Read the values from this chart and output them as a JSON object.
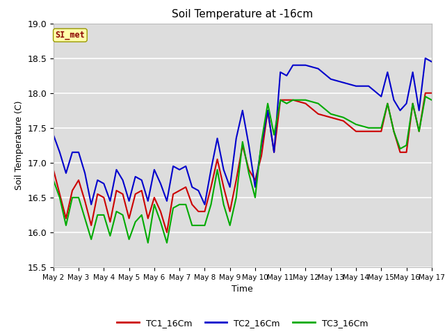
{
  "title": "Soil Temperature at -16cm",
  "xlabel": "Time",
  "ylabel": "Soil Temperature (C)",
  "ylim": [
    15.5,
    19.0
  ],
  "fig_bg_color": "#ffffff",
  "plot_bg_color": "#dddddd",
  "watermark_text": "SI_met",
  "legend_labels": [
    "TC1_16Cm",
    "TC2_16Cm",
    "TC3_16Cm"
  ],
  "colors": [
    "#cc0000",
    "#0000cc",
    "#00aa00"
  ],
  "x_tick_labels": [
    "May 2",
    "May 3",
    "May 4",
    "May 5",
    "May 6",
    "May 7",
    "May 8",
    "May 9",
    "May 10",
    "May 11",
    "May 12",
    "May 13",
    "May 14",
    "May 15",
    "May 16",
    "May 17"
  ],
  "TC1_x": [
    0,
    0.25,
    0.5,
    0.75,
    1.0,
    1.25,
    1.5,
    1.75,
    2.0,
    2.25,
    2.5,
    2.75,
    3.0,
    3.25,
    3.5,
    3.75,
    4.0,
    4.25,
    4.5,
    4.75,
    5.0,
    5.25,
    5.5,
    5.75,
    6.0,
    6.25,
    6.5,
    6.75,
    7.0,
    7.25,
    7.5,
    7.75,
    8.0,
    8.25,
    8.5,
    8.75,
    9.0,
    9.5,
    10.0,
    10.5,
    11.0,
    11.5,
    12.0,
    12.5,
    13.0,
    13.25,
    13.5,
    13.75,
    14.0,
    14.25,
    14.5,
    14.75,
    15.0
  ],
  "TC1_y": [
    16.9,
    16.55,
    16.2,
    16.6,
    16.75,
    16.45,
    16.1,
    16.55,
    16.5,
    16.15,
    16.6,
    16.55,
    16.2,
    16.55,
    16.6,
    16.2,
    16.5,
    16.3,
    16.0,
    16.55,
    16.6,
    16.65,
    16.4,
    16.3,
    16.3,
    16.65,
    17.05,
    16.65,
    16.3,
    16.75,
    17.25,
    16.9,
    16.75,
    17.1,
    17.75,
    17.15,
    17.9,
    17.9,
    17.85,
    17.7,
    17.65,
    17.6,
    17.45,
    17.45,
    17.45,
    17.85,
    17.45,
    17.15,
    17.15,
    17.85,
    17.45,
    18.0,
    18.0
  ],
  "TC2_x": [
    0,
    0.25,
    0.5,
    0.75,
    1.0,
    1.25,
    1.5,
    1.75,
    2.0,
    2.25,
    2.5,
    2.75,
    3.0,
    3.25,
    3.5,
    3.75,
    4.0,
    4.25,
    4.5,
    4.75,
    5.0,
    5.25,
    5.5,
    5.75,
    6.0,
    6.25,
    6.5,
    6.75,
    7.0,
    7.25,
    7.5,
    7.75,
    8.0,
    8.25,
    8.5,
    8.75,
    9.0,
    9.25,
    9.5,
    10.0,
    10.5,
    11.0,
    11.5,
    12.0,
    12.5,
    13.0,
    13.25,
    13.5,
    13.75,
    14.0,
    14.25,
    14.5,
    14.75,
    15.0
  ],
  "TC2_y": [
    17.4,
    17.15,
    16.85,
    17.15,
    17.15,
    16.85,
    16.4,
    16.75,
    16.7,
    16.45,
    16.9,
    16.75,
    16.45,
    16.8,
    16.75,
    16.45,
    16.9,
    16.7,
    16.45,
    16.95,
    16.9,
    16.95,
    16.65,
    16.6,
    16.4,
    16.9,
    17.35,
    16.9,
    16.65,
    17.35,
    17.75,
    17.25,
    16.65,
    17.25,
    17.75,
    17.15,
    18.3,
    18.25,
    18.4,
    18.4,
    18.35,
    18.2,
    18.15,
    18.1,
    18.1,
    17.95,
    18.3,
    17.9,
    17.75,
    17.85,
    18.3,
    17.75,
    18.5,
    18.45
  ],
  "TC3_x": [
    0,
    0.25,
    0.5,
    0.75,
    1.0,
    1.25,
    1.5,
    1.75,
    2.0,
    2.25,
    2.5,
    2.75,
    3.0,
    3.25,
    3.5,
    3.75,
    4.0,
    4.25,
    4.5,
    4.75,
    5.0,
    5.25,
    5.5,
    5.75,
    6.0,
    6.25,
    6.5,
    6.75,
    7.0,
    7.25,
    7.5,
    7.75,
    8.0,
    8.25,
    8.5,
    8.75,
    9.0,
    9.25,
    9.5,
    10.0,
    10.5,
    11.0,
    11.5,
    12.0,
    12.5,
    13.0,
    13.25,
    13.5,
    13.75,
    14.0,
    14.25,
    14.5,
    14.75,
    15.0
  ],
  "TC3_y": [
    16.75,
    16.5,
    16.1,
    16.5,
    16.5,
    16.2,
    15.9,
    16.25,
    16.25,
    15.95,
    16.3,
    16.25,
    15.9,
    16.15,
    16.25,
    15.85,
    16.4,
    16.15,
    15.85,
    16.35,
    16.4,
    16.4,
    16.1,
    16.1,
    16.1,
    16.4,
    16.9,
    16.4,
    16.1,
    16.5,
    17.3,
    16.85,
    16.5,
    17.3,
    17.85,
    17.4,
    17.9,
    17.85,
    17.9,
    17.9,
    17.85,
    17.7,
    17.65,
    17.55,
    17.5,
    17.5,
    17.85,
    17.45,
    17.2,
    17.25,
    17.85,
    17.45,
    17.95,
    17.9
  ]
}
